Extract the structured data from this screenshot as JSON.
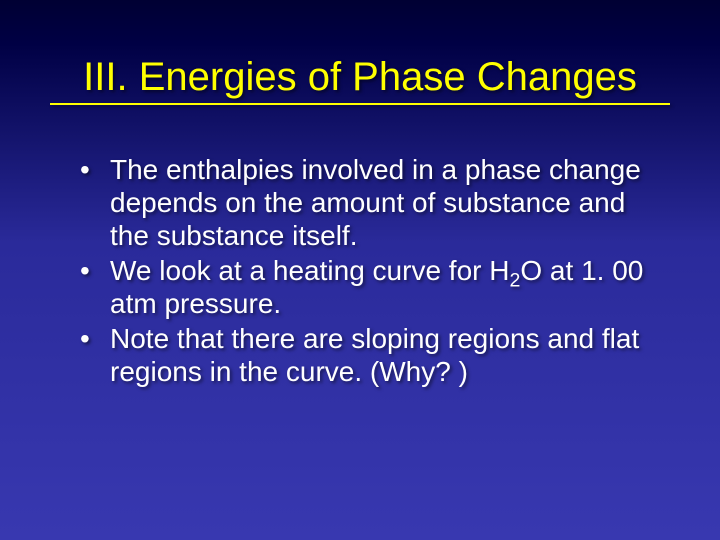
{
  "slide": {
    "title": "III. Energies of Phase Changes",
    "bullets": [
      {
        "text": "The enthalpies involved in a phase change depends on the amount of substance and the substance itself."
      },
      {
        "pre": "We look at a heating curve for H",
        "sub": "2",
        "post": "O at 1. 00 atm pressure."
      },
      {
        "text": "Note that there are sloping regions and flat regions in the curve.  (Why? )"
      }
    ]
  },
  "style": {
    "title_color": "#ffff00",
    "text_color": "#ffffff",
    "bg_gradient_top": "#000033",
    "bg_gradient_bottom": "#3838b0",
    "title_fontsize": 40,
    "body_fontsize": 28
  }
}
